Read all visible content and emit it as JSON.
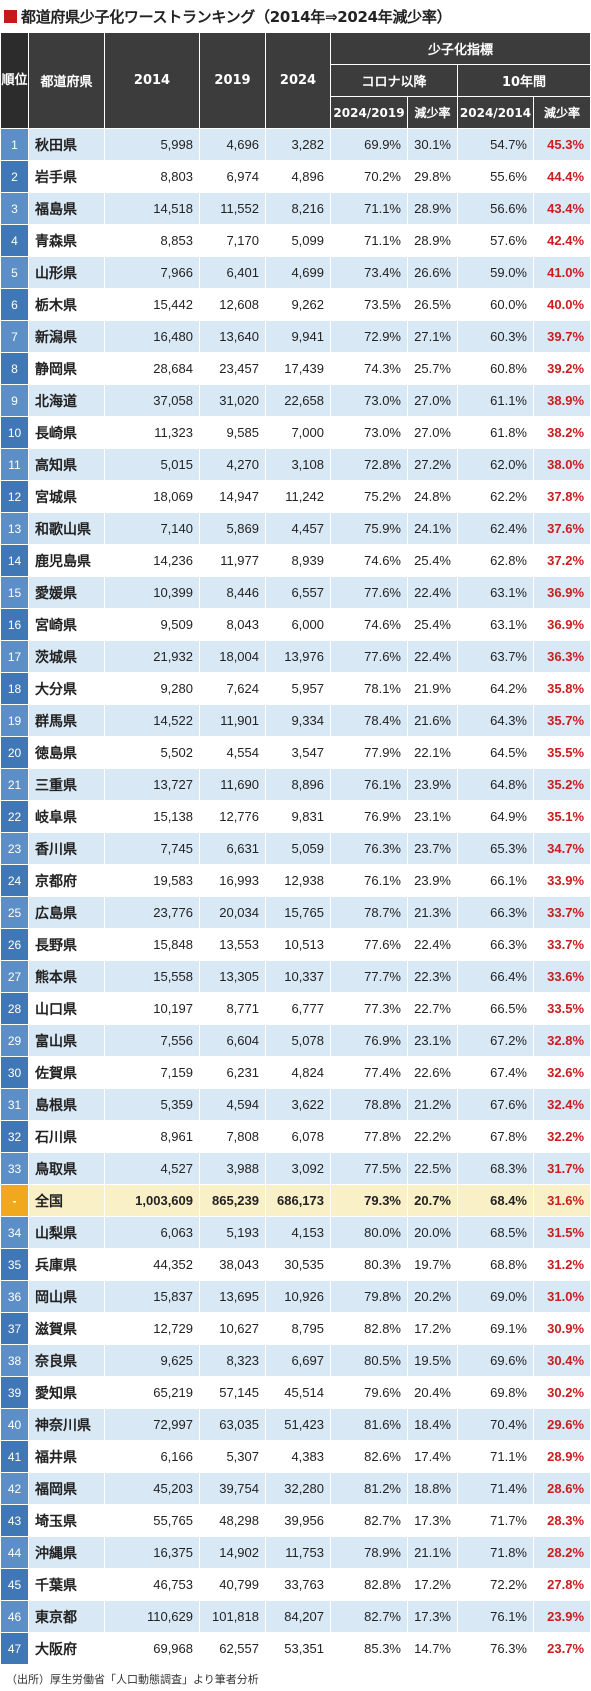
{
  "title": "都道府県少子化ワーストランキング（2014年⇒2024年減少率）",
  "headers": {
    "rank": "順位",
    "pref": "都道府県",
    "y2014": "2014",
    "y2019": "2019",
    "y2024": "2024",
    "indicator": "少子化指標",
    "covid": "コロナ以降",
    "tenyear": "10年間",
    "ratio_2024_2019": "2024/2019",
    "decline1": "減少率",
    "ratio_2024_2014": "2024/2014",
    "decline2": "減少率"
  },
  "rows": [
    {
      "rank": "1",
      "pref": "秋田県",
      "y2014": "5,998",
      "y2019": "4,696",
      "y2024": "3,282",
      "r1": "69.9%",
      "d1": "30.1%",
      "r2": "54.7%",
      "d2": "45.3%"
    },
    {
      "rank": "2",
      "pref": "岩手県",
      "y2014": "8,803",
      "y2019": "6,974",
      "y2024": "4,896",
      "r1": "70.2%",
      "d1": "29.8%",
      "r2": "55.6%",
      "d2": "44.4%"
    },
    {
      "rank": "3",
      "pref": "福島県",
      "y2014": "14,518",
      "y2019": "11,552",
      "y2024": "8,216",
      "r1": "71.1%",
      "d1": "28.9%",
      "r2": "56.6%",
      "d2": "43.4%"
    },
    {
      "rank": "4",
      "pref": "青森県",
      "y2014": "8,853",
      "y2019": "7,170",
      "y2024": "5,099",
      "r1": "71.1%",
      "d1": "28.9%",
      "r2": "57.6%",
      "d2": "42.4%"
    },
    {
      "rank": "5",
      "pref": "山形県",
      "y2014": "7,966",
      "y2019": "6,401",
      "y2024": "4,699",
      "r1": "73.4%",
      "d1": "26.6%",
      "r2": "59.0%",
      "d2": "41.0%"
    },
    {
      "rank": "6",
      "pref": "栃木県",
      "y2014": "15,442",
      "y2019": "12,608",
      "y2024": "9,262",
      "r1": "73.5%",
      "d1": "26.5%",
      "r2": "60.0%",
      "d2": "40.0%"
    },
    {
      "rank": "7",
      "pref": "新潟県",
      "y2014": "16,480",
      "y2019": "13,640",
      "y2024": "9,941",
      "r1": "72.9%",
      "d1": "27.1%",
      "r2": "60.3%",
      "d2": "39.7%"
    },
    {
      "rank": "8",
      "pref": "静岡県",
      "y2014": "28,684",
      "y2019": "23,457",
      "y2024": "17,439",
      "r1": "74.3%",
      "d1": "25.7%",
      "r2": "60.8%",
      "d2": "39.2%"
    },
    {
      "rank": "9",
      "pref": "北海道",
      "y2014": "37,058",
      "y2019": "31,020",
      "y2024": "22,658",
      "r1": "73.0%",
      "d1": "27.0%",
      "r2": "61.1%",
      "d2": "38.9%"
    },
    {
      "rank": "10",
      "pref": "長崎県",
      "y2014": "11,323",
      "y2019": "9,585",
      "y2024": "7,000",
      "r1": "73.0%",
      "d1": "27.0%",
      "r2": "61.8%",
      "d2": "38.2%"
    },
    {
      "rank": "11",
      "pref": "高知県",
      "y2014": "5,015",
      "y2019": "4,270",
      "y2024": "3,108",
      "r1": "72.8%",
      "d1": "27.2%",
      "r2": "62.0%",
      "d2": "38.0%"
    },
    {
      "rank": "12",
      "pref": "宮城県",
      "y2014": "18,069",
      "y2019": "14,947",
      "y2024": "11,242",
      "r1": "75.2%",
      "d1": "24.8%",
      "r2": "62.2%",
      "d2": "37.8%"
    },
    {
      "rank": "13",
      "pref": "和歌山県",
      "y2014": "7,140",
      "y2019": "5,869",
      "y2024": "4,457",
      "r1": "75.9%",
      "d1": "24.1%",
      "r2": "62.4%",
      "d2": "37.6%"
    },
    {
      "rank": "14",
      "pref": "鹿児島県",
      "y2014": "14,236",
      "y2019": "11,977",
      "y2024": "8,939",
      "r1": "74.6%",
      "d1": "25.4%",
      "r2": "62.8%",
      "d2": "37.2%"
    },
    {
      "rank": "15",
      "pref": "愛媛県",
      "y2014": "10,399",
      "y2019": "8,446",
      "y2024": "6,557",
      "r1": "77.6%",
      "d1": "22.4%",
      "r2": "63.1%",
      "d2": "36.9%"
    },
    {
      "rank": "16",
      "pref": "宮崎県",
      "y2014": "9,509",
      "y2019": "8,043",
      "y2024": "6,000",
      "r1": "74.6%",
      "d1": "25.4%",
      "r2": "63.1%",
      "d2": "36.9%"
    },
    {
      "rank": "17",
      "pref": "茨城県",
      "y2014": "21,932",
      "y2019": "18,004",
      "y2024": "13,976",
      "r1": "77.6%",
      "d1": "22.4%",
      "r2": "63.7%",
      "d2": "36.3%"
    },
    {
      "rank": "18",
      "pref": "大分県",
      "y2014": "9,280",
      "y2019": "7,624",
      "y2024": "5,957",
      "r1": "78.1%",
      "d1": "21.9%",
      "r2": "64.2%",
      "d2": "35.8%"
    },
    {
      "rank": "19",
      "pref": "群馬県",
      "y2014": "14,522",
      "y2019": "11,901",
      "y2024": "9,334",
      "r1": "78.4%",
      "d1": "21.6%",
      "r2": "64.3%",
      "d2": "35.7%"
    },
    {
      "rank": "20",
      "pref": "徳島県",
      "y2014": "5,502",
      "y2019": "4,554",
      "y2024": "3,547",
      "r1": "77.9%",
      "d1": "22.1%",
      "r2": "64.5%",
      "d2": "35.5%"
    },
    {
      "rank": "21",
      "pref": "三重県",
      "y2014": "13,727",
      "y2019": "11,690",
      "y2024": "8,896",
      "r1": "76.1%",
      "d1": "23.9%",
      "r2": "64.8%",
      "d2": "35.2%"
    },
    {
      "rank": "22",
      "pref": "岐阜県",
      "y2014": "15,138",
      "y2019": "12,776",
      "y2024": "9,831",
      "r1": "76.9%",
      "d1": "23.1%",
      "r2": "64.9%",
      "d2": "35.1%"
    },
    {
      "rank": "23",
      "pref": "香川県",
      "y2014": "7,745",
      "y2019": "6,631",
      "y2024": "5,059",
      "r1": "76.3%",
      "d1": "23.7%",
      "r2": "65.3%",
      "d2": "34.7%"
    },
    {
      "rank": "24",
      "pref": "京都府",
      "y2014": "19,583",
      "y2019": "16,993",
      "y2024": "12,938",
      "r1": "76.1%",
      "d1": "23.9%",
      "r2": "66.1%",
      "d2": "33.9%"
    },
    {
      "rank": "25",
      "pref": "広島県",
      "y2014": "23,776",
      "y2019": "20,034",
      "y2024": "15,765",
      "r1": "78.7%",
      "d1": "21.3%",
      "r2": "66.3%",
      "d2": "33.7%"
    },
    {
      "rank": "26",
      "pref": "長野県",
      "y2014": "15,848",
      "y2019": "13,553",
      "y2024": "10,513",
      "r1": "77.6%",
      "d1": "22.4%",
      "r2": "66.3%",
      "d2": "33.7%"
    },
    {
      "rank": "27",
      "pref": "熊本県",
      "y2014": "15,558",
      "y2019": "13,305",
      "y2024": "10,337",
      "r1": "77.7%",
      "d1": "22.3%",
      "r2": "66.4%",
      "d2": "33.6%"
    },
    {
      "rank": "28",
      "pref": "山口県",
      "y2014": "10,197",
      "y2019": "8,771",
      "y2024": "6,777",
      "r1": "77.3%",
      "d1": "22.7%",
      "r2": "66.5%",
      "d2": "33.5%"
    },
    {
      "rank": "29",
      "pref": "富山県",
      "y2014": "7,556",
      "y2019": "6,604",
      "y2024": "5,078",
      "r1": "76.9%",
      "d1": "23.1%",
      "r2": "67.2%",
      "d2": "32.8%"
    },
    {
      "rank": "30",
      "pref": "佐賀県",
      "y2014": "7,159",
      "y2019": "6,231",
      "y2024": "4,824",
      "r1": "77.4%",
      "d1": "22.6%",
      "r2": "67.4%",
      "d2": "32.6%"
    },
    {
      "rank": "31",
      "pref": "島根県",
      "y2014": "5,359",
      "y2019": "4,594",
      "y2024": "3,622",
      "r1": "78.8%",
      "d1": "21.2%",
      "r2": "67.6%",
      "d2": "32.4%"
    },
    {
      "rank": "32",
      "pref": "石川県",
      "y2014": "8,961",
      "y2019": "7,808",
      "y2024": "6,078",
      "r1": "77.8%",
      "d1": "22.2%",
      "r2": "67.8%",
      "d2": "32.2%"
    },
    {
      "rank": "33",
      "pref": "鳥取県",
      "y2014": "4,527",
      "y2019": "3,988",
      "y2024": "3,092",
      "r1": "77.5%",
      "d1": "22.5%",
      "r2": "68.3%",
      "d2": "31.7%"
    },
    {
      "rank": "-",
      "pref": "全国",
      "y2014": "1,003,609",
      "y2019": "865,239",
      "y2024": "686,173",
      "r1": "79.3%",
      "d1": "20.7%",
      "r2": "68.4%",
      "d2": "31.6%",
      "national": true
    },
    {
      "rank": "34",
      "pref": "山梨県",
      "y2014": "6,063",
      "y2019": "5,193",
      "y2024": "4,153",
      "r1": "80.0%",
      "d1": "20.0%",
      "r2": "68.5%",
      "d2": "31.5%"
    },
    {
      "rank": "35",
      "pref": "兵庫県",
      "y2014": "44,352",
      "y2019": "38,043",
      "y2024": "30,535",
      "r1": "80.3%",
      "d1": "19.7%",
      "r2": "68.8%",
      "d2": "31.2%"
    },
    {
      "rank": "36",
      "pref": "岡山県",
      "y2014": "15,837",
      "y2019": "13,695",
      "y2024": "10,926",
      "r1": "79.8%",
      "d1": "20.2%",
      "r2": "69.0%",
      "d2": "31.0%"
    },
    {
      "rank": "37",
      "pref": "滋賀県",
      "y2014": "12,729",
      "y2019": "10,627",
      "y2024": "8,795",
      "r1": "82.8%",
      "d1": "17.2%",
      "r2": "69.1%",
      "d2": "30.9%"
    },
    {
      "rank": "38",
      "pref": "奈良県",
      "y2014": "9,625",
      "y2019": "8,323",
      "y2024": "6,697",
      "r1": "80.5%",
      "d1": "19.5%",
      "r2": "69.6%",
      "d2": "30.4%"
    },
    {
      "rank": "39",
      "pref": "愛知県",
      "y2014": "65,219",
      "y2019": "57,145",
      "y2024": "45,514",
      "r1": "79.6%",
      "d1": "20.4%",
      "r2": "69.8%",
      "d2": "30.2%"
    },
    {
      "rank": "40",
      "pref": "神奈川県",
      "y2014": "72,997",
      "y2019": "63,035",
      "y2024": "51,423",
      "r1": "81.6%",
      "d1": "18.4%",
      "r2": "70.4%",
      "d2": "29.6%"
    },
    {
      "rank": "41",
      "pref": "福井県",
      "y2014": "6,166",
      "y2019": "5,307",
      "y2024": "4,383",
      "r1": "82.6%",
      "d1": "17.4%",
      "r2": "71.1%",
      "d2": "28.9%"
    },
    {
      "rank": "42",
      "pref": "福岡県",
      "y2014": "45,203",
      "y2019": "39,754",
      "y2024": "32,280",
      "r1": "81.2%",
      "d1": "18.8%",
      "r2": "71.4%",
      "d2": "28.6%"
    },
    {
      "rank": "43",
      "pref": "埼玉県",
      "y2014": "55,765",
      "y2019": "48,298",
      "y2024": "39,956",
      "r1": "82.7%",
      "d1": "17.3%",
      "r2": "71.7%",
      "d2": "28.3%"
    },
    {
      "rank": "44",
      "pref": "沖縄県",
      "y2014": "16,375",
      "y2019": "14,902",
      "y2024": "11,753",
      "r1": "78.9%",
      "d1": "21.1%",
      "r2": "71.8%",
      "d2": "28.2%"
    },
    {
      "rank": "45",
      "pref": "千葉県",
      "y2014": "46,753",
      "y2019": "40,799",
      "y2024": "33,763",
      "r1": "82.8%",
      "d1": "17.2%",
      "r2": "72.2%",
      "d2": "27.8%"
    },
    {
      "rank": "46",
      "pref": "東京都",
      "y2014": "110,629",
      "y2019": "101,818",
      "y2024": "84,207",
      "r1": "82.7%",
      "d1": "17.3%",
      "r2": "76.1%",
      "d2": "23.9%"
    },
    {
      "rank": "47",
      "pref": "大阪府",
      "y2014": "69,968",
      "y2019": "62,557",
      "y2024": "53,351",
      "r1": "85.3%",
      "d1": "14.7%",
      "r2": "76.3%",
      "d2": "23.7%"
    }
  ],
  "source": "（出所）厚生労働省「人口動態調査」より筆者分析",
  "colors": {
    "title_marker": "#c41a1a",
    "header_bg": "#3c3c3c",
    "rank_bg": "#3f78b4",
    "row_alt_bg": "#d9e8f5",
    "national_bg": "#faf0c8",
    "national_rank_bg": "#f0a81c",
    "decline_text": "#c81e1e"
  }
}
